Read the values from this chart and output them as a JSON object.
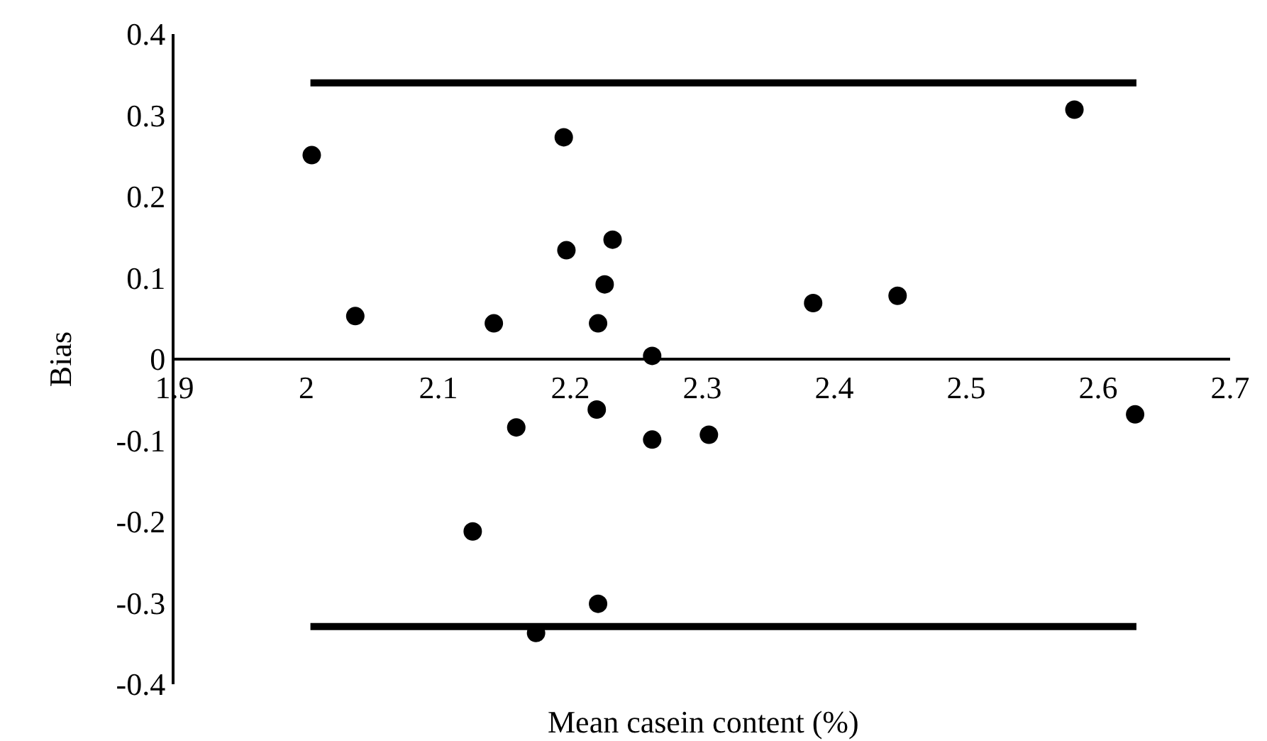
{
  "chart_data": {
    "type": "scatter",
    "xlabel": "Mean casein content (%)",
    "ylabel": "Bias",
    "xlim": [
      1.9,
      2.7
    ],
    "xticks": [
      1.9,
      2,
      2.1,
      2.2,
      2.3,
      2.4,
      2.5,
      2.6,
      2.7
    ],
    "ylim": [
      -0.4,
      0.4
    ],
    "yticks": [
      -0.4,
      -0.3,
      -0.2,
      -0.1,
      0,
      0.1,
      0.2,
      0.3,
      0.4
    ],
    "series": [
      {
        "color": "#000000",
        "marker": "circle",
        "x": [
          2.004,
          2.037,
          2.142,
          2.195,
          2.197,
          2.232,
          2.226,
          2.221,
          2.22,
          2.159,
          2.126,
          2.221,
          2.174,
          2.582,
          2.384,
          2.448,
          2.262,
          2.262,
          2.305,
          2.628
        ],
        "values": [
          0.251,
          0.053,
          0.044,
          0.273,
          0.134,
          0.147,
          0.092,
          0.044,
          -0.062,
          -0.084,
          -0.212,
          -0.301,
          -0.337,
          0.307,
          0.069,
          0.078,
          0.004,
          -0.099,
          -0.093,
          -0.068
        ]
      },
      {
        "type": "line",
        "color": "#000000",
        "x": [
          2.003,
          2.629
        ],
        "values": [
          0.34,
          0.34
        ]
      },
      {
        "type": "line",
        "color": "#000000",
        "x": [
          2.003,
          2.629
        ],
        "values": [
          -0.329,
          -0.329
        ]
      }
    ]
  }
}
